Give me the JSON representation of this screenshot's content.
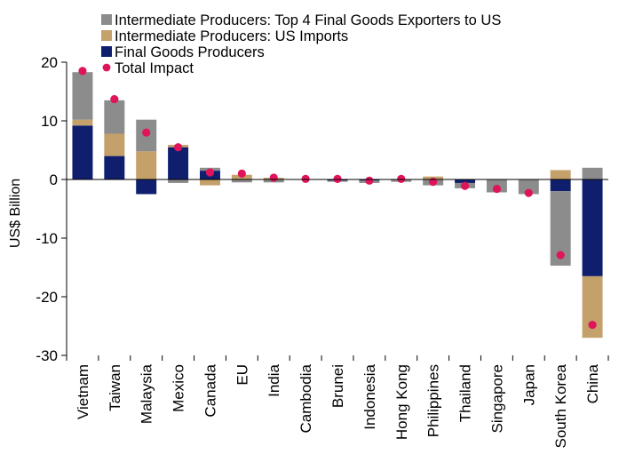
{
  "chart_data": {
    "type": "bar",
    "stacked": true,
    "ylabel": "US$ Billion",
    "xlabel": "",
    "ylim": [
      -30,
      20
    ],
    "yticks": [
      20,
      10,
      0,
      -10,
      -20,
      -30
    ],
    "grid": false,
    "legend_position": "top",
    "categories": [
      "Vietnam",
      "Taiwan",
      "Malaysia",
      "Mexico",
      "Canada",
      "EU",
      "India",
      "Cambodia",
      "Brunei",
      "Indonesia",
      "Hong Kong",
      "Philippines",
      "Thailand",
      "Singapore",
      "Japan",
      "South Korea",
      "China"
    ],
    "series": [
      {
        "name": "Final Goods Producers",
        "kind": "bar",
        "color": "#0f1f6e",
        "values": [
          9.2,
          4.0,
          -2.5,
          5.5,
          1.5,
          0.0,
          0.0,
          0.0,
          -0.2,
          -0.2,
          0.0,
          0.0,
          -0.6,
          0.0,
          0.0,
          -2.0,
          -16.5
        ]
      },
      {
        "name": "Intermediate Producers: US Imports",
        "kind": "bar",
        "color": "#c4a06a",
        "values": [
          1.0,
          3.8,
          4.8,
          0.4,
          -1.0,
          0.8,
          0.3,
          0.0,
          0.0,
          0.0,
          0.0,
          0.5,
          0.0,
          0.0,
          0.0,
          1.6,
          -10.5
        ]
      },
      {
        "name": "Intermediate Producers: Top 4 Final Goods Exporters to US",
        "kind": "bar",
        "color": "#8c8c8c",
        "values": [
          8.1,
          5.7,
          5.4,
          -0.6,
          0.5,
          -0.5,
          -0.5,
          0.0,
          -0.2,
          -0.4,
          -0.4,
          -1.0,
          -0.9,
          -2.2,
          -2.5,
          -12.7,
          2.0
        ]
      },
      {
        "name": "Total Impact",
        "kind": "point",
        "color": "#e0145a",
        "values": [
          18.5,
          13.7,
          8.0,
          5.5,
          1.2,
          1.0,
          0.3,
          0.1,
          0.1,
          -0.2,
          0.1,
          -0.4,
          -1.1,
          -1.6,
          -2.3,
          -12.9,
          -24.8
        ]
      }
    ],
    "legend": [
      {
        "label": "Intermediate Producers: Top 4 Final Goods Exporters to US",
        "color": "#8c8c8c",
        "marker": "square"
      },
      {
        "label": "Intermediate Producers: US Imports",
        "color": "#c4a06a",
        "marker": "square"
      },
      {
        "label": "Final Goods Producers",
        "color": "#0f1f6e",
        "marker": "square"
      },
      {
        "label": "Total Impact",
        "color": "#e0145a",
        "marker": "circle"
      }
    ]
  }
}
